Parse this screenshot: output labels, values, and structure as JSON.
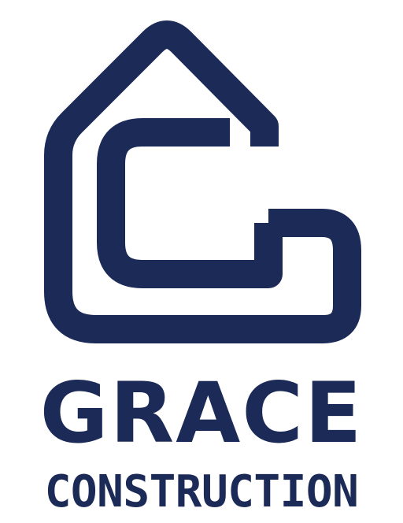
{
  "brand": {
    "name": "GRACE",
    "subtitle": "CONSTRUCTION",
    "color": "#1b2a57",
    "background": "#ffffff"
  },
  "logo": {
    "icon": "house-g-logo-icon"
  }
}
